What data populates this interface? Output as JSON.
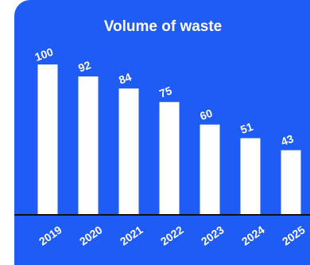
{
  "colors": {
    "background": "#1f5bf5",
    "bar": "#ffffff",
    "baseline": "#111111",
    "text": "#ffffff"
  },
  "chart_data": {
    "type": "bar",
    "title": "Volume of waste",
    "categories": [
      "2019",
      "2020",
      "2021",
      "2022",
      "2023",
      "2024",
      "2025"
    ],
    "values": [
      100,
      92,
      84,
      75,
      60,
      51,
      43
    ],
    "data_labels": [
      "100",
      "92",
      "84",
      "75",
      "60",
      "51",
      "43"
    ],
    "xlabel": "",
    "ylabel": "",
    "ylim": [
      0,
      100
    ],
    "grid": false,
    "legend": "none"
  }
}
